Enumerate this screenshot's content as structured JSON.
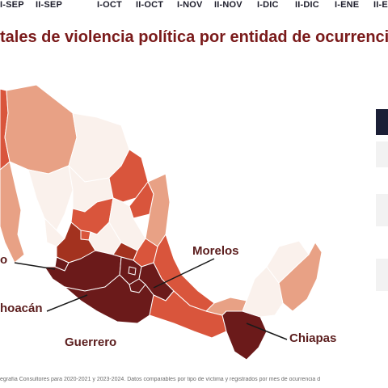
{
  "timeline": [
    "I-SEP",
    "II-SEP",
    "I-OCT",
    "II-OCT",
    "I-NOV",
    "II-NOV",
    "I-DIC",
    "II-DIC",
    "I-ENE",
    "II-E"
  ],
  "title": "tales de violencia política por entidad de ocurrencia",
  "labels": {
    "left_top": "o",
    "left_mid": "hoacán",
    "morelos": "Morelos",
    "guerrero": "Guerrero",
    "chiapas": "Chiapas"
  },
  "source": "egrafía Consultores para 2020-2021 y 2023-2024. Datos comparables por tipo de víctima y registrados por mes de ocurrencia d",
  "colors": {
    "darkest": "#6b1a1a",
    "dark": "#a3321f",
    "medium": "#d9553c",
    "light": "#e8a185",
    "lightest": "#faf1ec",
    "panel_dark": "#1b1f36",
    "panel_light": "#f2f2f2",
    "label": "#5b1d1d"
  }
}
